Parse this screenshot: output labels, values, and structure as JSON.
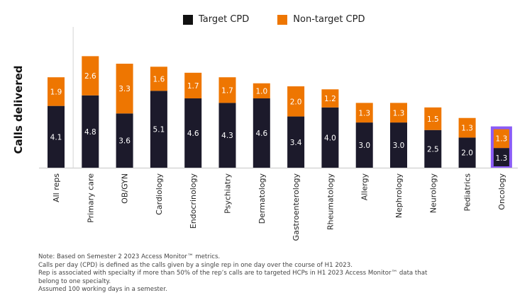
{
  "colors": {
    "target": "#1c1a2b",
    "nontarget": "#ee7601",
    "highlight": "#8b5cf6",
    "axis": "#d6d6d6",
    "label_text": "#ffffff"
  },
  "legend": {
    "items": [
      {
        "label": "Target CPD",
        "color": "#111111"
      },
      {
        "label": "Non-target CPD",
        "color": "#ee7601"
      }
    ]
  },
  "chart_data": {
    "type": "bar",
    "stacked": true,
    "title": "",
    "xlabel": "",
    "ylabel": "Calls delivered",
    "ylim": [
      0,
      7.6
    ],
    "grid": false,
    "legend_position": "top-center",
    "categories": [
      "All reps",
      "Primary care",
      "OB/GYN",
      "Cardiology",
      "Endocrinology",
      "Psychiatry",
      "Dermatology",
      "Gastroenterology",
      "Rheumatology",
      "Allergy",
      "Nephrology",
      "Neurology",
      "Pediatrics",
      "Oncology"
    ],
    "series": [
      {
        "name": "Target CPD",
        "values": [
          4.1,
          4.8,
          3.6,
          5.1,
          4.6,
          4.3,
          4.6,
          3.4,
          4.0,
          3.0,
          3.0,
          2.5,
          2.0,
          1.3
        ]
      },
      {
        "name": "Non-target CPD",
        "values": [
          1.9,
          2.6,
          3.3,
          1.6,
          1.7,
          1.7,
          1.0,
          2.0,
          1.2,
          1.3,
          1.3,
          1.5,
          1.3,
          1.3
        ]
      }
    ],
    "highlighted_category": "Oncology",
    "separator_after": "All reps"
  },
  "notes": [
    "Note: Based on Semester 2 2023 Access Monitor™ metrics.",
    "Calls per day (CPD) is defined as the calls given by a single rep in one day over the course of H1 2023.",
    "Rep is associated with specialty if more than 50% of the rep’s calls are to targeted HCPs in H1 2023 Access Monitor™ data that",
    "belong to one specialty.",
    "Assumed 100 working days in a semester."
  ]
}
